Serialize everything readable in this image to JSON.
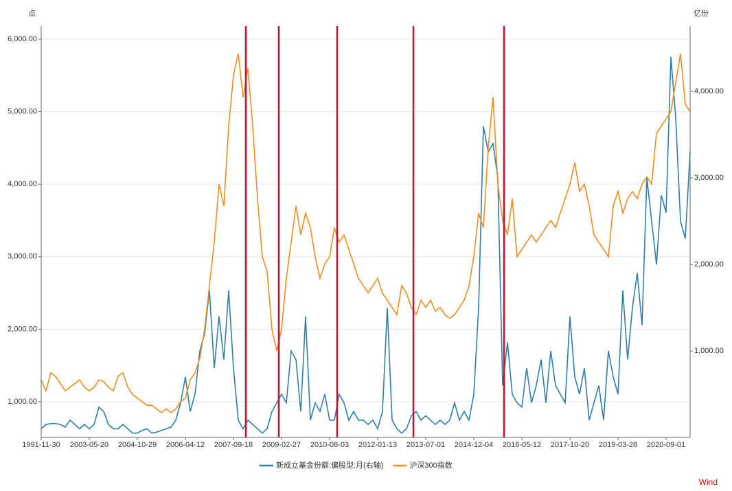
{
  "chart_data": {
    "type": "line",
    "y_unit": "点",
    "y2_unit": "亿份",
    "source": "Wind",
    "categories": [
      "1991-11-30",
      null,
      null,
      null,
      null,
      null,
      null,
      null,
      null,
      null,
      "2003-05-20",
      null,
      null,
      null,
      null,
      null,
      null,
      null,
      null,
      null,
      "2004-10-29",
      null,
      null,
      null,
      null,
      null,
      null,
      null,
      null,
      null,
      "2006-04-12",
      null,
      null,
      null,
      null,
      null,
      null,
      null,
      null,
      null,
      "2007-09-18",
      null,
      null,
      null,
      null,
      null,
      null,
      null,
      null,
      null,
      "2009-02-27",
      null,
      null,
      null,
      null,
      null,
      null,
      null,
      null,
      null,
      "2010-08-03",
      null,
      null,
      null,
      null,
      null,
      null,
      null,
      null,
      null,
      "2012-01-13",
      null,
      null,
      null,
      null,
      null,
      null,
      null,
      null,
      null,
      "2013-07-01",
      null,
      null,
      null,
      null,
      null,
      null,
      null,
      null,
      null,
      "2014-12-04",
      null,
      null,
      null,
      null,
      null,
      null,
      null,
      null,
      null,
      "2016-05-12",
      null,
      null,
      null,
      null,
      null,
      null,
      null,
      null,
      null,
      "2017-10-20",
      null,
      null,
      null,
      null,
      null,
      null,
      null,
      null,
      null,
      "2019-03-28",
      null,
      null,
      null,
      null,
      null,
      null,
      null,
      null,
      null,
      "2020-09-01",
      null,
      null,
      null,
      null,
      null
    ],
    "series": [
      {
        "name": "新成立基金份额:偏股型:月(右轴)",
        "color": "#2e7fa8",
        "axis": "y2",
        "values": [
          100,
          150,
          160,
          160,
          150,
          120,
          200,
          150,
          100,
          150,
          100,
          150,
          350,
          300,
          150,
          100,
          100,
          150,
          100,
          50,
          50,
          80,
          100,
          50,
          60,
          80,
          100,
          120,
          200,
          400,
          700,
          300,
          500,
          1000,
          1200,
          1700,
          800,
          1400,
          900,
          1700,
          800,
          200,
          100,
          200,
          150,
          100,
          50,
          100,
          300,
          400,
          500,
          400,
          1000,
          900,
          300,
          1400,
          200,
          400,
          300,
          500,
          200,
          200,
          500,
          400,
          200,
          300,
          200,
          200,
          150,
          200,
          100,
          300,
          1500,
          200,
          100,
          50,
          100,
          250,
          300,
          200,
          250,
          200,
          150,
          200,
          150,
          200,
          400,
          200,
          300,
          200,
          500,
          1500,
          3600,
          3300,
          3400,
          3000,
          600,
          1100,
          500,
          400,
          350,
          800,
          400,
          600,
          900,
          400,
          1000,
          600,
          500,
          400,
          1400,
          700,
          500,
          800,
          200,
          400,
          600,
          200,
          1000,
          700,
          500,
          1700,
          900,
          1500,
          1900,
          1300,
          3000,
          2500,
          2000,
          2800,
          2600,
          4400,
          3700,
          2500,
          2300,
          3300
        ]
      },
      {
        "name": "沪深300指数",
        "color": "#f28c1e",
        "values": [
          1300,
          1150,
          1400,
          1350,
          1250,
          1150,
          1200,
          1250,
          1300,
          1200,
          1150,
          1200,
          1300,
          1280,
          1200,
          1150,
          1350,
          1400,
          1200,
          1100,
          1050,
          1000,
          950,
          950,
          900,
          850,
          900,
          850,
          900,
          1000,
          1050,
          1300,
          1400,
          1600,
          2000,
          2600,
          3200,
          4000,
          3700,
          4800,
          5500,
          5800,
          5200,
          5600,
          4800,
          3800,
          3000,
          2800,
          2000,
          1700,
          2000,
          2700,
          3200,
          3700,
          3300,
          3600,
          3400,
          3000,
          2700,
          2900,
          3000,
          3400,
          3200,
          3300,
          3100,
          2900,
          2700,
          2600,
          2500,
          2600,
          2700,
          2500,
          2400,
          2300,
          2200,
          2600,
          2500,
          2300,
          2200,
          2400,
          2300,
          2400,
          2250,
          2300,
          2200,
          2150,
          2200,
          2300,
          2400,
          2600,
          3000,
          3600,
          3400,
          4500,
          5200,
          4000,
          3500,
          3300,
          3800,
          3000,
          3100,
          3200,
          3300,
          3200,
          3300,
          3400,
          3500,
          3400,
          3600,
          3800,
          4000,
          4300,
          3900,
          4000,
          3700,
          3300,
          3200,
          3100,
          3000,
          3700,
          3900,
          3600,
          3800,
          3900,
          3800,
          4000,
          4100,
          4000,
          4700,
          4800,
          4900,
          5000,
          5400,
          5800,
          5100,
          5000
        ]
      }
    ],
    "ylim": [
      507,
      6180
    ],
    "yticks": [
      {
        "value": 1000,
        "label": "1,000.00"
      },
      {
        "value": 2000,
        "label": "2,000.00"
      },
      {
        "value": 3000,
        "label": "3,000.00"
      },
      {
        "value": 4000,
        "label": "4,000.00"
      },
      {
        "value": 5000,
        "label": "5,000.00"
      },
      {
        "value": 6000,
        "label": "6,000.00"
      }
    ],
    "y2lim": [
      0,
      4756
    ],
    "y2ticks": [
      {
        "value": 1000,
        "label": "1,000.00"
      },
      {
        "value": 2000,
        "label": "2,000.00"
      },
      {
        "value": 3000,
        "label": "3,000.00"
      },
      {
        "value": 4000,
        "label": "4,000.00"
      }
    ],
    "grid": true
  }
}
